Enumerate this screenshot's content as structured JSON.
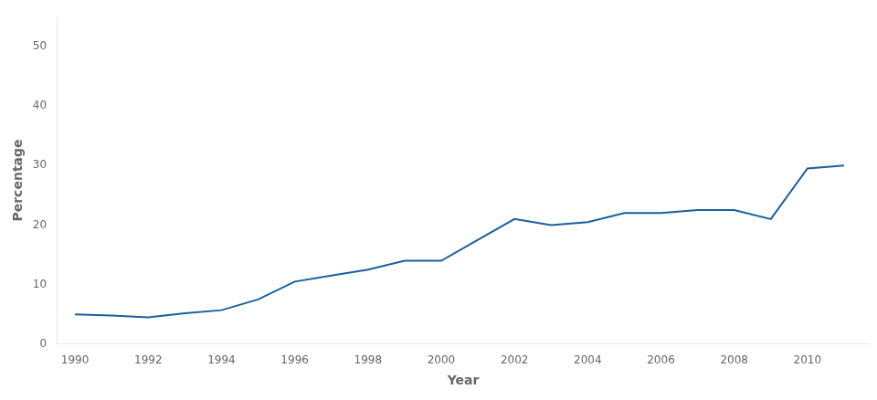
{
  "chart_data": {
    "type": "line",
    "xlabel": "Year",
    "ylabel": "Percentage",
    "x": [
      1990,
      1991,
      1992,
      1993,
      1994,
      1995,
      1996,
      1997,
      1998,
      1999,
      2000,
      2001,
      2002,
      2003,
      2004,
      2005,
      2006,
      2007,
      2008,
      2009,
      2010,
      2011
    ],
    "values": [
      5.0,
      4.8,
      4.5,
      5.2,
      5.7,
      7.5,
      10.5,
      11.5,
      12.5,
      14.0,
      14.0,
      17.5,
      21.0,
      20.0,
      20.5,
      22.0,
      22.0,
      22.5,
      22.5,
      21.0,
      29.5,
      30.0
    ],
    "color": "#1a5f9e",
    "xlim": [
      1989.5,
      2011.7
    ],
    "xticks": [
      1990,
      1992,
      1994,
      1996,
      1998,
      2000,
      2002,
      2004,
      2006,
      2008,
      2010
    ],
    "ylim": [
      0,
      55
    ],
    "yticks": [
      0,
      10,
      20,
      30,
      40,
      50
    ],
    "grid": false
  }
}
